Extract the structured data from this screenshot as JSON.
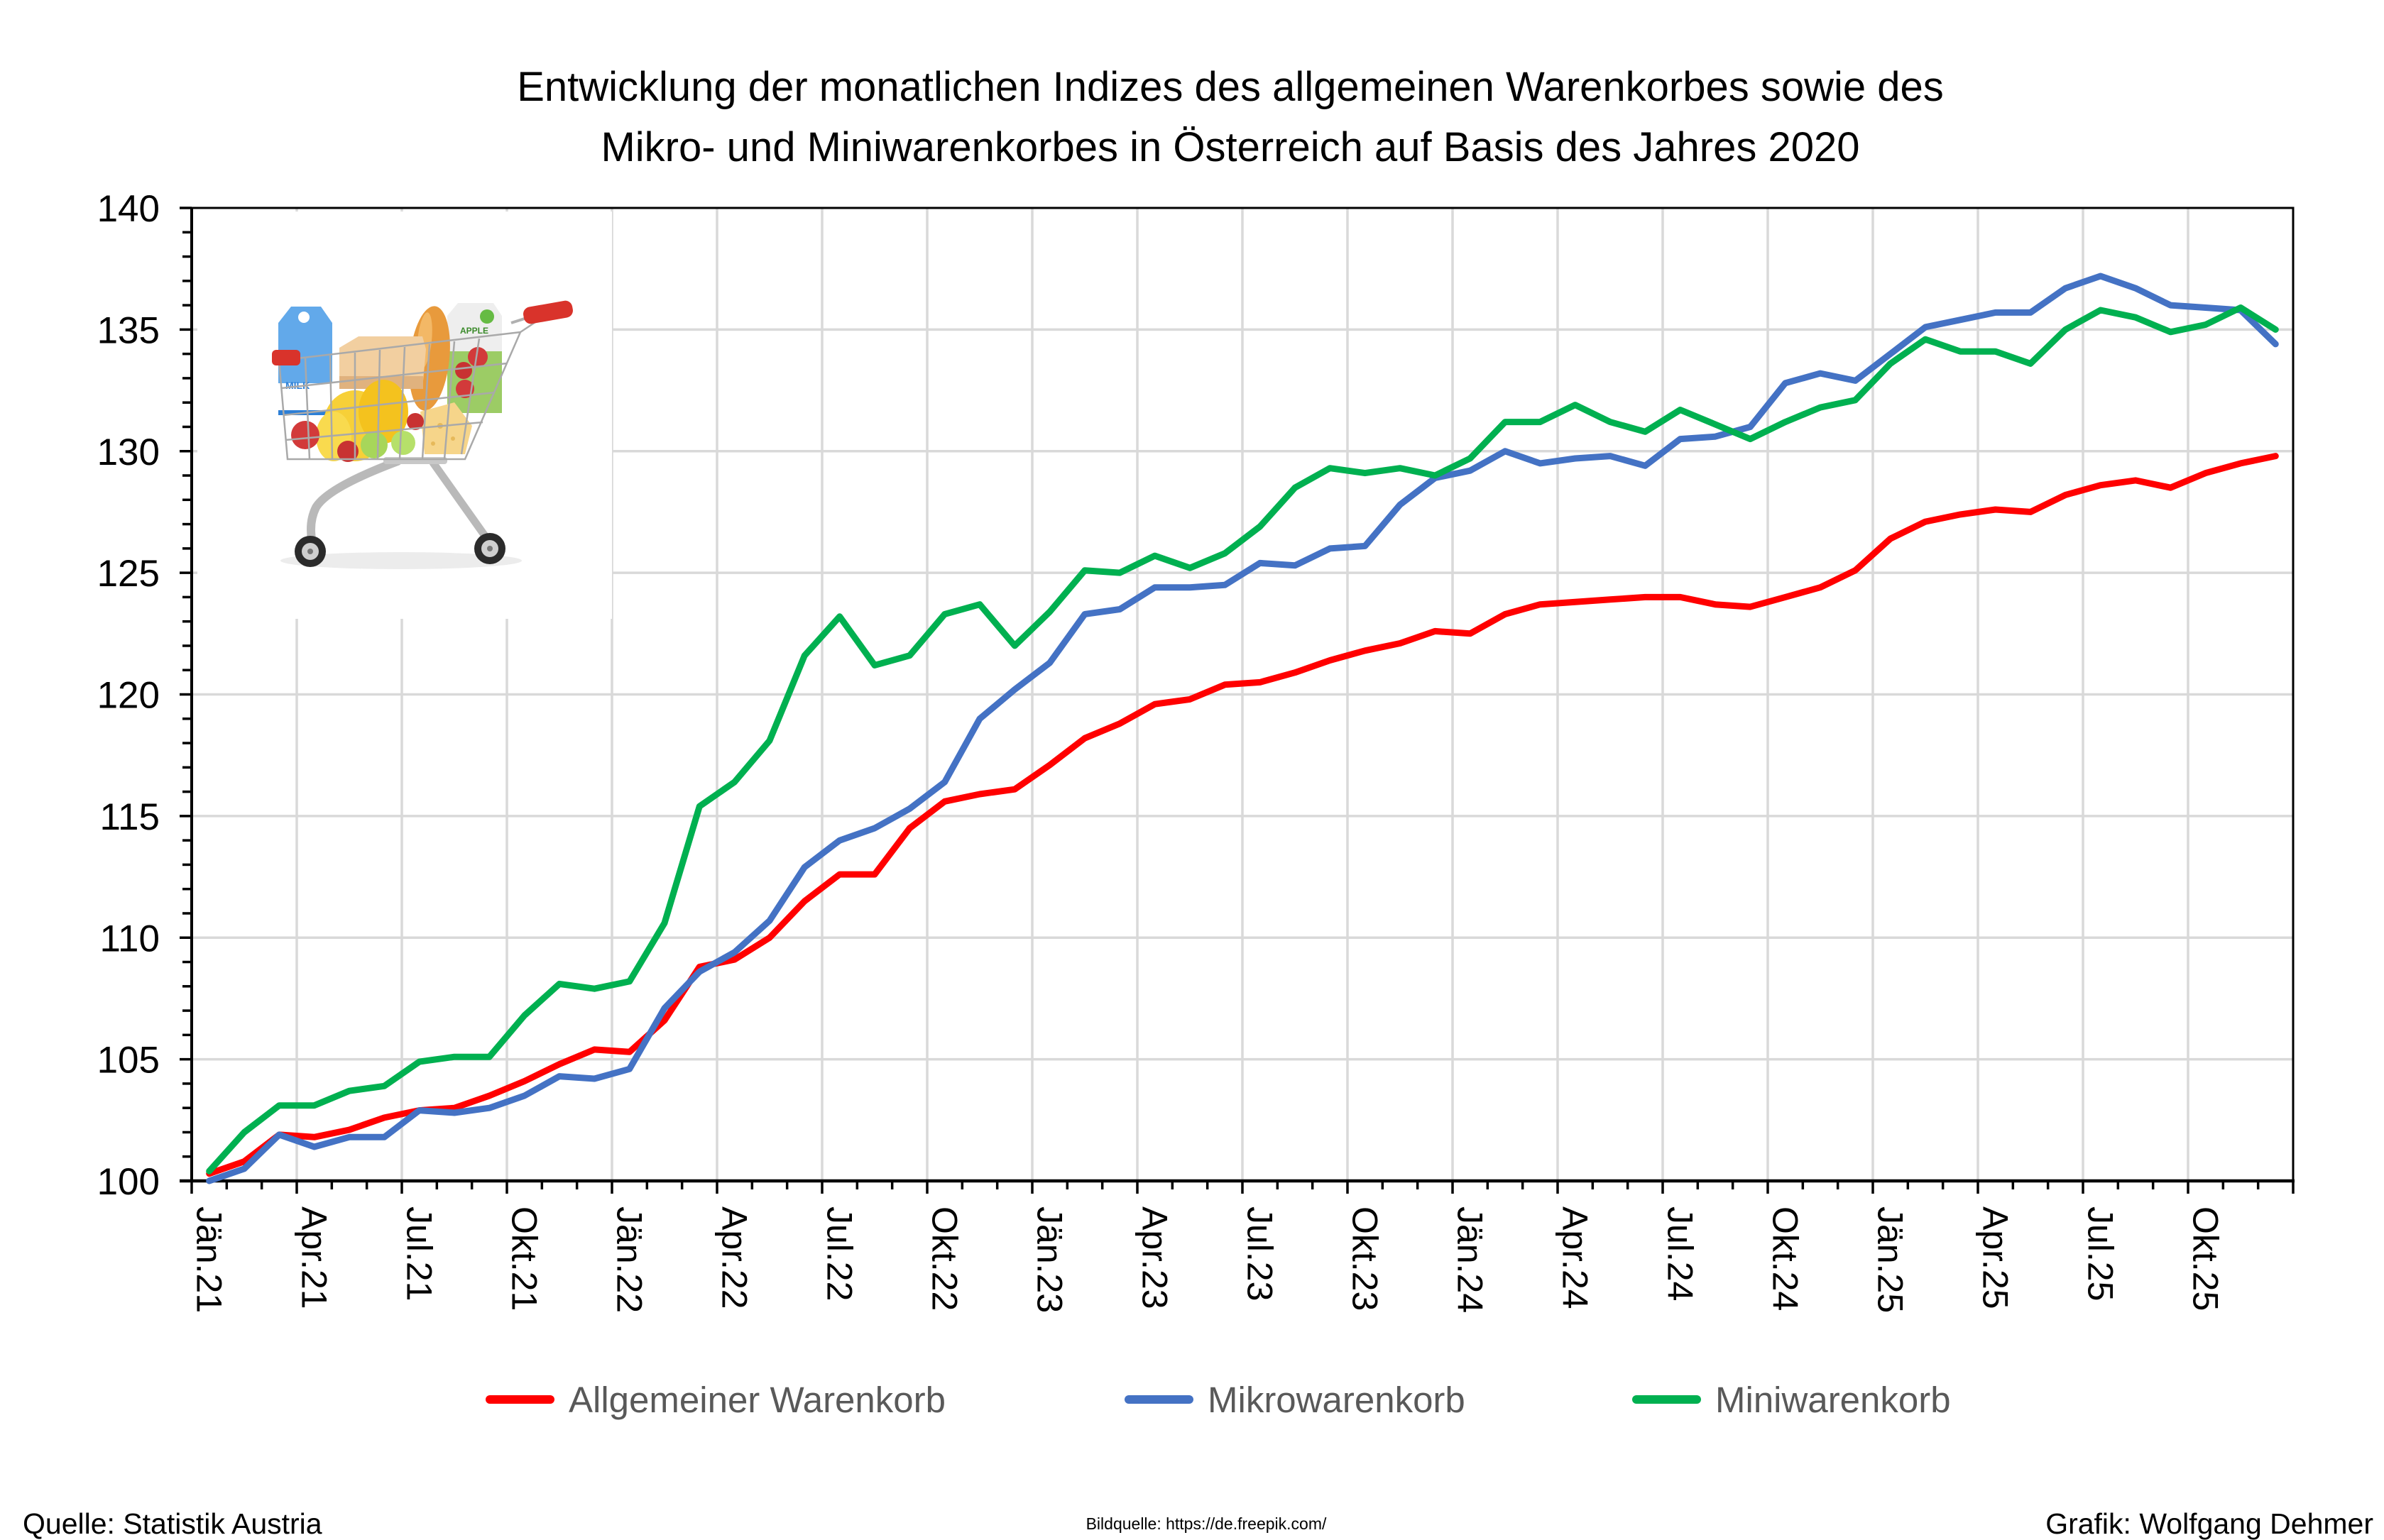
{
  "chart_data": {
    "type": "line",
    "title": [
      "Entwicklung der monatlichen Indizes des allgemeinen Warenkorbes sowie des",
      "Mikro- und Miniwarenkorbes in Österreich auf Basis des Jahres 2020"
    ],
    "xlabel": "",
    "ylabel": "",
    "ylim": [
      100,
      140
    ],
    "yticks": [
      "100",
      "105",
      "110",
      "115",
      "120",
      "125",
      "130",
      "135",
      "140"
    ],
    "ytick_step": 5,
    "yminor_step": 1,
    "xtick_label_every_n_months": 3,
    "xtick_labels": [
      "Jän.21",
      "Apr.21",
      "Jul.21",
      "Okt.21",
      "Jän.22",
      "Apr.22",
      "Jul.22",
      "Okt.22",
      "Jän.23",
      "Apr.23",
      "Jul.23",
      "Okt.23",
      "Jän.24",
      "Apr.24",
      "Jul.24",
      "Okt.24",
      "Jän.25",
      "Apr.25",
      "Jul.25",
      "Okt.25"
    ],
    "grid": true,
    "legend_position": "bottom",
    "series": [
      {
        "name": "Allgemeiner Warenkorb",
        "color": "#FF0000",
        "values": [
          100.3,
          100.8,
          101.9,
          101.8,
          102.1,
          102.6,
          102.9,
          103.0,
          103.5,
          104.1,
          104.8,
          105.4,
          105.3,
          106.6,
          108.8,
          109.1,
          110.0,
          111.5,
          112.6,
          112.6,
          114.5,
          115.6,
          115.9,
          116.1,
          117.1,
          118.2,
          118.8,
          119.6,
          119.8,
          120.4,
          120.5,
          120.9,
          121.4,
          121.8,
          122.1,
          122.6,
          122.5,
          123.3,
          123.7,
          123.8,
          123.9,
          124.0,
          124.0,
          123.7,
          123.6,
          124.0,
          124.4,
          125.1,
          126.4,
          127.1,
          127.4,
          127.6,
          127.5,
          128.2,
          128.6,
          128.8,
          128.5,
          129.1,
          129.5,
          129.8
        ]
      },
      {
        "name": "Mikrowarenkorb",
        "color": "#4472C4",
        "values": [
          100.0,
          100.5,
          101.9,
          101.4,
          101.8,
          101.8,
          102.9,
          102.8,
          103.0,
          103.5,
          104.3,
          104.2,
          104.6,
          107.1,
          108.6,
          109.4,
          110.7,
          112.9,
          114.0,
          114.5,
          115.3,
          116.4,
          119.0,
          120.2,
          121.3,
          123.3,
          123.5,
          124.4,
          124.4,
          124.5,
          125.4,
          125.3,
          126.0,
          126.1,
          127.8,
          128.9,
          129.2,
          130.0,
          129.5,
          129.7,
          129.8,
          129.4,
          130.5,
          130.6,
          131.0,
          132.8,
          133.2,
          132.9,
          134.0,
          135.1,
          135.4,
          135.7,
          135.7,
          136.7,
          137.2,
          136.7,
          136.0,
          135.9,
          135.8,
          134.4
        ]
      },
      {
        "name": "Miniwarenkorb",
        "color": "#00B050",
        "values": [
          100.4,
          102.0,
          103.1,
          103.1,
          103.7,
          103.9,
          104.9,
          105.1,
          105.1,
          106.8,
          108.1,
          107.9,
          108.2,
          110.6,
          115.4,
          116.4,
          118.1,
          121.6,
          123.2,
          121.2,
          121.6,
          123.3,
          123.7,
          122.0,
          123.4,
          125.1,
          125.0,
          125.7,
          125.2,
          125.8,
          126.9,
          128.5,
          129.3,
          129.1,
          129.3,
          129.0,
          129.7,
          131.2,
          131.2,
          131.9,
          131.2,
          130.8,
          131.7,
          131.1,
          130.5,
          131.2,
          131.8,
          132.1,
          133.6,
          134.6,
          134.1,
          134.1,
          133.6,
          135.0,
          135.8,
          135.5,
          134.9,
          135.2,
          135.9,
          135.0
        ]
      }
    ]
  },
  "colors": {
    "gridline": "#D9D9D9",
    "axis": "#000000",
    "legend_text": "#595959"
  },
  "illustration": {
    "name": "shopping-cart-with-groceries",
    "picture_lettering": [
      "MILK",
      "APPLE"
    ]
  },
  "footer": {
    "source": "Quelle: Statistik Austria",
    "image_source": "Bildquelle: https://de.freepik.com/",
    "credit": "Grafik: Wolfgang Dehmer"
  }
}
